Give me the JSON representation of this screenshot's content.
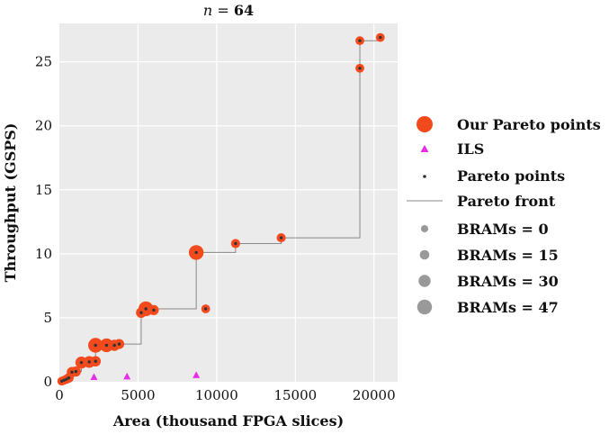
{
  "chart_data": {
    "type": "scatter",
    "title": "n = 64",
    "title_var": "n",
    "title_eq": " = ",
    "title_value": "64",
    "xlabel": "Area (thousand FPGA slices)",
    "ylabel": "Throughput (GSPS)",
    "xlim": [
      0,
      21500
    ],
    "ylim": [
      0,
      28
    ],
    "xticks": [
      0,
      5000,
      10000,
      15000,
      20000
    ],
    "xtick_labels": [
      "0",
      "5000",
      "10000",
      "15000",
      "20000"
    ],
    "yticks": [
      0,
      5,
      10,
      15,
      20,
      25
    ],
    "ytick_labels": [
      "0",
      "5",
      "10",
      "15",
      "20",
      "25"
    ],
    "grid": true,
    "legend_position": "right",
    "colors": {
      "ours": "#f24a1c",
      "ils": "#e62ee6",
      "pareto": "#333333",
      "front": "#888888",
      "size_key": "#999999",
      "background": "#ebebeb",
      "grid": "#ffffff"
    },
    "series": [
      {
        "name": "Our Pareto points",
        "marker": "circle",
        "points": [
          {
            "x": 150,
            "y": 0.05,
            "brams": 10
          },
          {
            "x": 300,
            "y": 0.12,
            "brams": 10
          },
          {
            "x": 450,
            "y": 0.2,
            "brams": 12
          },
          {
            "x": 600,
            "y": 0.3,
            "brams": 15
          },
          {
            "x": 800,
            "y": 0.75,
            "brams": 20
          },
          {
            "x": 1050,
            "y": 0.8,
            "brams": 18
          },
          {
            "x": 1400,
            "y": 1.5,
            "brams": 30
          },
          {
            "x": 1900,
            "y": 1.55,
            "brams": 28
          },
          {
            "x": 2300,
            "y": 1.6,
            "brams": 20
          },
          {
            "x": 2300,
            "y": 2.85,
            "brams": 47
          },
          {
            "x": 3000,
            "y": 2.85,
            "brams": 40
          },
          {
            "x": 3500,
            "y": 2.85,
            "brams": 25
          },
          {
            "x": 3800,
            "y": 2.95,
            "brams": 18
          },
          {
            "x": 5200,
            "y": 5.4,
            "brams": 20
          },
          {
            "x": 5500,
            "y": 5.7,
            "brams": 47
          },
          {
            "x": 6000,
            "y": 5.6,
            "brams": 18
          },
          {
            "x": 8700,
            "y": 10.1,
            "brams": 47
          },
          {
            "x": 9300,
            "y": 5.7,
            "brams": 10
          },
          {
            "x": 11200,
            "y": 10.8,
            "brams": 12
          },
          {
            "x": 14100,
            "y": 11.25,
            "brams": 12
          },
          {
            "x": 19100,
            "y": 24.5,
            "brams": 10
          },
          {
            "x": 19100,
            "y": 26.65,
            "brams": 10
          },
          {
            "x": 20400,
            "y": 26.9,
            "brams": 10
          }
        ]
      },
      {
        "name": "ILS",
        "marker": "triangle",
        "points": [
          {
            "x": 2200,
            "y": 0.35
          },
          {
            "x": 4300,
            "y": 0.4
          },
          {
            "x": 8700,
            "y": 0.5
          }
        ]
      },
      {
        "name": "Pareto points",
        "marker": "dot",
        "points": [
          {
            "x": 150,
            "y": 0.05
          },
          {
            "x": 300,
            "y": 0.12
          },
          {
            "x": 450,
            "y": 0.2
          },
          {
            "x": 600,
            "y": 0.3
          },
          {
            "x": 800,
            "y": 0.75
          },
          {
            "x": 1050,
            "y": 0.8
          },
          {
            "x": 1400,
            "y": 1.5
          },
          {
            "x": 1900,
            "y": 1.55
          },
          {
            "x": 2300,
            "y": 1.6
          },
          {
            "x": 2300,
            "y": 2.85
          },
          {
            "x": 3000,
            "y": 2.85
          },
          {
            "x": 3500,
            "y": 2.85
          },
          {
            "x": 3800,
            "y": 2.95
          },
          {
            "x": 5200,
            "y": 5.4
          },
          {
            "x": 5500,
            "y": 5.7
          },
          {
            "x": 6000,
            "y": 5.6
          },
          {
            "x": 8700,
            "y": 10.1
          },
          {
            "x": 9300,
            "y": 5.7
          },
          {
            "x": 11200,
            "y": 10.8
          },
          {
            "x": 14100,
            "y": 11.25
          },
          {
            "x": 19100,
            "y": 24.5
          },
          {
            "x": 19100,
            "y": 26.65
          },
          {
            "x": 20400,
            "y": 26.9
          }
        ]
      }
    ],
    "pareto_front": {
      "name": "Pareto front",
      "steps": [
        {
          "x": 0,
          "y": 0
        },
        {
          "x": 150,
          "y": 0.05
        },
        {
          "x": 300,
          "y": 0.12
        },
        {
          "x": 450,
          "y": 0.2
        },
        {
          "x": 600,
          "y": 0.3
        },
        {
          "x": 800,
          "y": 0.75
        },
        {
          "x": 1050,
          "y": 0.8
        },
        {
          "x": 1400,
          "y": 1.5
        },
        {
          "x": 1900,
          "y": 1.55
        },
        {
          "x": 2300,
          "y": 2.85
        },
        {
          "x": 3800,
          "y": 2.95
        },
        {
          "x": 5200,
          "y": 5.4
        },
        {
          "x": 5500,
          "y": 5.7
        },
        {
          "x": 8700,
          "y": 10.1
        },
        {
          "x": 11200,
          "y": 10.8
        },
        {
          "x": 14100,
          "y": 11.25
        },
        {
          "x": 19100,
          "y": 26.65
        },
        {
          "x": 20400,
          "y": 26.9
        }
      ]
    },
    "size_legend": [
      {
        "label": "BRAMs = 0",
        "brams": 0
      },
      {
        "label": "BRAMs = 15",
        "brams": 15
      },
      {
        "label": "BRAMs = 30",
        "brams": 30
      },
      {
        "label": "BRAMs = 47",
        "brams": 47
      }
    ]
  }
}
